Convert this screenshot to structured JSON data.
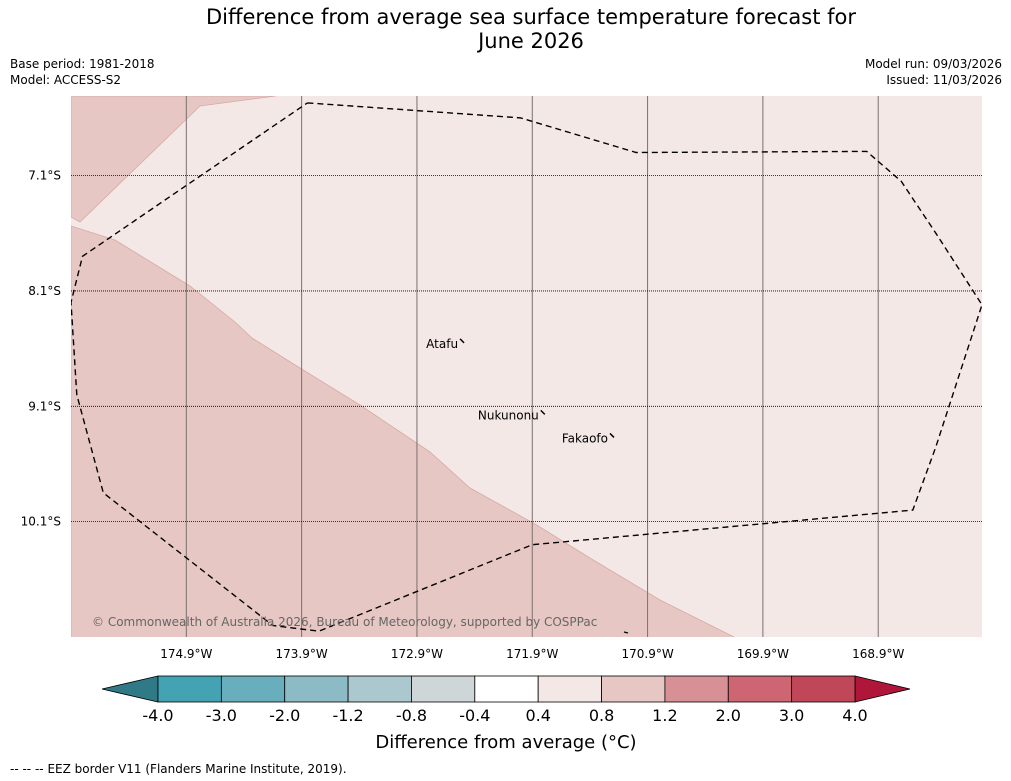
{
  "header": {
    "title_line1": "Difference from average sea surface temperature forecast for",
    "title_line2": "June 2026",
    "base_period": "Base period: 1981-2018",
    "model": "Model: ACCESS-S2",
    "model_run": "Model run: 09/03/2026",
    "issued": "Issued: 11/03/2026"
  },
  "map": {
    "extent": {
      "lon_min": -175.9,
      "lon_max": -168.0,
      "lat_top": -6.41,
      "lat_bottom": -11.1
    },
    "lon_ticks": [
      {
        "lon": -174.9,
        "label": "174.9°W"
      },
      {
        "lon": -173.9,
        "label": "173.9°W"
      },
      {
        "lon": -172.9,
        "label": "172.9°W"
      },
      {
        "lon": -171.9,
        "label": "171.9°W"
      },
      {
        "lon": -170.9,
        "label": "170.9°W"
      },
      {
        "lon": -169.9,
        "label": "169.9°W"
      },
      {
        "lon": -168.9,
        "label": "168.9°W"
      }
    ],
    "lat_ticks": [
      {
        "lat": -7.1,
        "label": "7.1°S"
      },
      {
        "lat": -8.1,
        "label": "8.1°S"
      },
      {
        "lat": -9.1,
        "label": "9.1°S"
      },
      {
        "lat": -10.1,
        "label": "10.1°S"
      }
    ],
    "fill_colors": {
      "light": "#f4e8e7",
      "medium": "#e7c7c3",
      "edge": "#d6aaa5"
    },
    "islands": [
      {
        "name": "Atafu",
        "lon": -172.5,
        "lat": -8.55
      },
      {
        "name": "Nukunonu",
        "lon": -171.8,
        "lat": -9.17
      },
      {
        "name": "Fakaofo",
        "lon": -171.2,
        "lat": -9.37
      }
    ],
    "eez_border": [
      [
        -173.85,
        -6.47
      ],
      [
        -172.0,
        -6.6
      ],
      [
        -171.0,
        -6.9
      ],
      [
        -169.0,
        -6.89
      ],
      [
        -168.7,
        -7.15
      ],
      [
        -168.4,
        -7.6
      ],
      [
        -168.0,
        -8.22
      ],
      [
        -168.4,
        -9.45
      ],
      [
        -168.6,
        -10.0
      ],
      [
        -171.9,
        -10.3
      ],
      [
        -173.75,
        -11.05
      ],
      [
        -174.15,
        -11.0
      ],
      [
        -175.62,
        -9.85
      ],
      [
        -175.85,
        -9.0
      ],
      [
        -175.9,
        -8.2
      ],
      [
        -175.8,
        -7.8
      ],
      [
        -173.85,
        -6.47
      ]
    ],
    "copyright": "© Commonwealth of Australia 2026, Bureau of Meteorology, supported by COSPPac"
  },
  "colorbar": {
    "ticks": [
      "-4.0",
      "-3.0",
      "-2.0",
      "-1.2",
      "-0.8",
      "-0.4",
      "0.4",
      "0.8",
      "1.2",
      "2.0",
      "3.0",
      "4.0"
    ],
    "low_extend_color": "#2f7a86",
    "high_extend_color": "#b0153a",
    "bins": [
      {
        "from": "-4.0",
        "to": "-3.0",
        "color": "#43a3b3"
      },
      {
        "from": "-3.0",
        "to": "-2.0",
        "color": "#69aebd"
      },
      {
        "from": "-2.0",
        "to": "-1.2",
        "color": "#8cbbc6"
      },
      {
        "from": "-1.2",
        "to": "-0.8",
        "color": "#aac8cd"
      },
      {
        "from": "-0.8",
        "to": "-0.4",
        "color": "#cfd6d8"
      },
      {
        "from": "-0.4",
        "to": "0.4",
        "color": "#ffffff"
      },
      {
        "from": "0.4",
        "to": "0.8",
        "color": "#f4e8e7"
      },
      {
        "from": "0.8",
        "to": "1.2",
        "color": "#e7c7c3"
      },
      {
        "from": "1.2",
        "to": "2.0",
        "color": "#d89097"
      },
      {
        "from": "2.0",
        "to": "3.0",
        "color": "#cd6672"
      },
      {
        "from": "3.0",
        "to": "4.0",
        "color": "#c04758"
      }
    ],
    "label": "Difference from average (°C)"
  },
  "footer": {
    "legend_symbol": "-- -- --",
    "legend_text": "EEZ border V11 (Flanders Marine Institute, 2019)."
  }
}
